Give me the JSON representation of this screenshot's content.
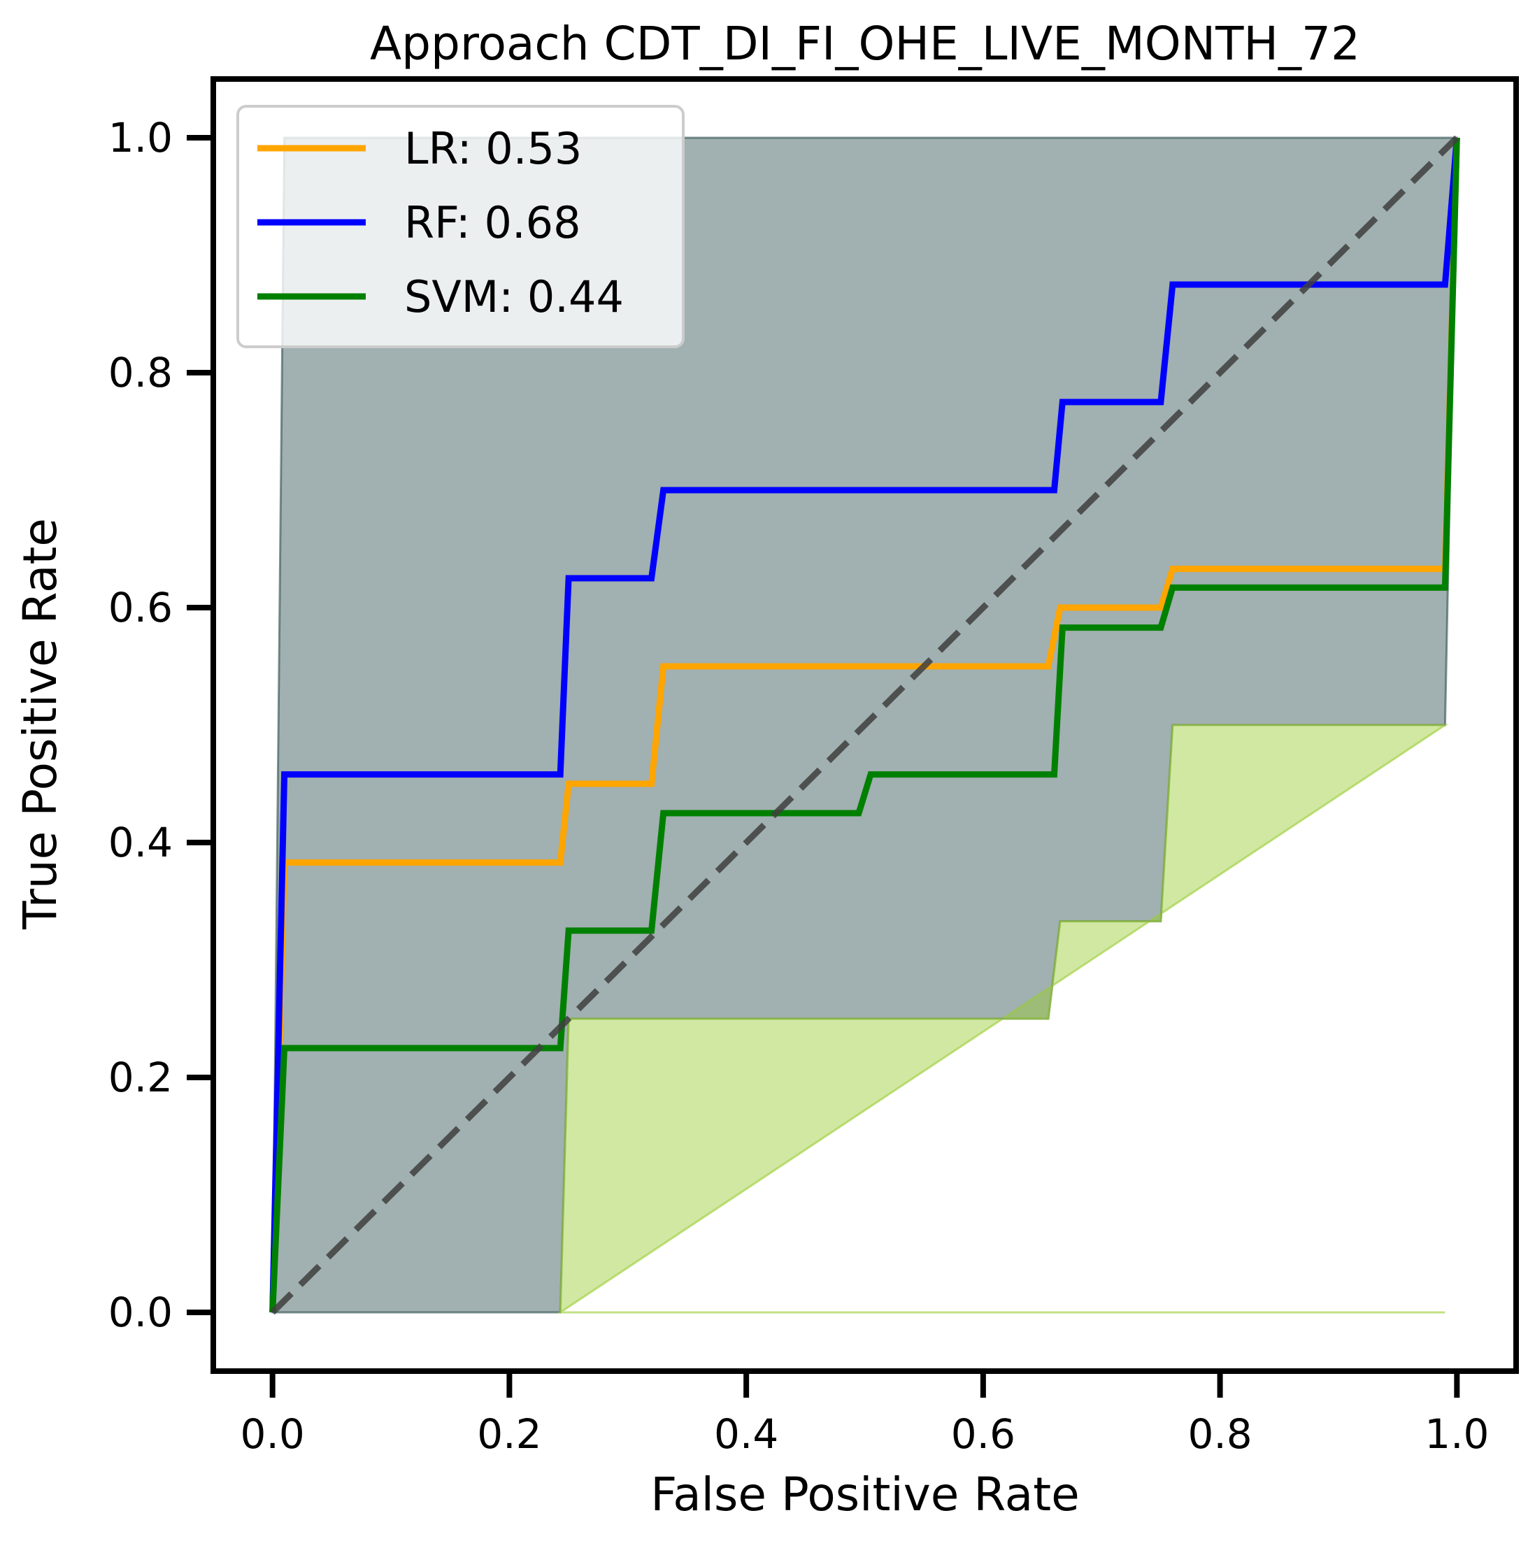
{
  "chart_data": {
    "type": "line",
    "title": "Approach CDT_DI_FI_OHE_LIVE_MONTH_72",
    "xlabel": "False Positive Rate",
    "ylabel": "True Positive Rate",
    "xlim": [
      -0.05,
      1.05
    ],
    "ylim": [
      -0.05,
      1.05
    ],
    "xticks": [
      0.0,
      0.2,
      0.4,
      0.6,
      0.8,
      1.0
    ],
    "yticks": [
      0.0,
      0.2,
      0.4,
      0.6,
      0.8,
      1.0
    ],
    "xtick_labels": [
      "0.0",
      "0.2",
      "0.4",
      "0.6",
      "0.8",
      "1.0"
    ],
    "ytick_labels": [
      "0.0",
      "0.2",
      "0.4",
      "0.6",
      "0.8",
      "1.0"
    ],
    "legend_position": "top-left",
    "grid": false,
    "series": [
      {
        "name": "LR",
        "legend_label": "LR: 0.53",
        "auc": 0.53,
        "color": "#FFA500",
        "x": [
          0.0,
          0.01,
          0.243,
          0.25,
          0.32,
          0.33,
          0.655,
          0.665,
          0.75,
          0.76,
          0.99,
          1.0
        ],
        "y": [
          0.0,
          0.383,
          0.383,
          0.45,
          0.45,
          0.55,
          0.55,
          0.6,
          0.6,
          0.633,
          0.633,
          1.0
        ]
      },
      {
        "name": "RF",
        "legend_label": "RF: 0.68",
        "auc": 0.68,
        "color": "#0000FF",
        "x": [
          0.0,
          0.01,
          0.243,
          0.25,
          0.32,
          0.33,
          0.66,
          0.667,
          0.75,
          0.76,
          0.99,
          1.0
        ],
        "y": [
          0.0,
          0.458,
          0.458,
          0.625,
          0.625,
          0.7,
          0.7,
          0.775,
          0.775,
          0.875,
          0.875,
          1.0
        ]
      },
      {
        "name": "SVM",
        "legend_label": "SVM: 0.44",
        "auc": 0.44,
        "color": "#008000",
        "x": [
          0.0,
          0.01,
          0.243,
          0.25,
          0.32,
          0.33,
          0.495,
          0.505,
          0.66,
          0.667,
          0.75,
          0.76,
          0.99,
          1.0
        ],
        "y": [
          0.0,
          0.225,
          0.225,
          0.325,
          0.325,
          0.425,
          0.425,
          0.458,
          0.458,
          0.583,
          0.583,
          0.617,
          0.617,
          1.0
        ]
      }
    ],
    "bands": [
      {
        "color": "#2F4F4F",
        "opacity": 0.45,
        "x_upper": [
          0.0,
          0.01,
          1.0
        ],
        "y_upper": [
          0.0,
          1.0,
          1.0
        ],
        "x_lower": [
          0.0,
          0.243,
          0.25,
          0.655,
          0.665,
          0.75,
          0.76,
          0.99,
          1.0
        ],
        "y_lower": [
          0.0,
          0.0,
          0.25,
          0.25,
          0.333,
          0.333,
          0.5,
          0.5,
          1.0
        ]
      },
      {
        "color": "#9ACD32",
        "opacity": 0.45,
        "x_upper": [
          0.243,
          0.25,
          0.655,
          0.665,
          0.75,
          0.76,
          0.99
        ],
        "y_upper": [
          0.0,
          0.25,
          0.25,
          0.333,
          0.333,
          0.5,
          0.5
        ],
        "x_lower": [
          0.99,
          0.243
        ],
        "y_lower": [
          0.0,
          0.0
        ]
      }
    ],
    "diagonal": {
      "x": [
        0.0,
        1.0
      ],
      "y": [
        0.0,
        1.0
      ],
      "color": "#404040",
      "style": "dashed"
    }
  }
}
